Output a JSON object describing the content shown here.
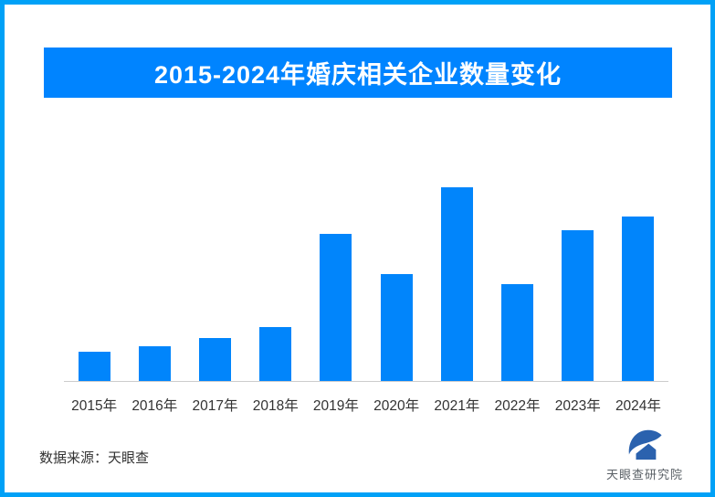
{
  "page": {
    "title_banner": "2015-2024年婚庆相关企业数量变化",
    "source_note": "数据来源：天眼查"
  },
  "footer_logo": {
    "icon": "tianyancha-logo-icon",
    "label": "天眼查研究院"
  },
  "colors": {
    "banner": "#0084ff",
    "border": "#00a1f7",
    "bar": "#0185fb",
    "axis_line": "#cccccc",
    "text": "#333333",
    "logo": "#2b62ae",
    "logo_text": "#5a6066"
  },
  "chart_data": {
    "type": "bar",
    "title": "2015-2024年婚庆相关企业数量变化",
    "categories": [
      "2015年",
      "2016年",
      "2017年",
      "2018年",
      "2019年",
      "2020年",
      "2021年",
      "2022年",
      "2023年",
      "2024年"
    ],
    "values": [
      15,
      18,
      22,
      28,
      76,
      55,
      100,
      50,
      78,
      85
    ],
    "value_units": "relative index (no y-axis or data labels shown; normalized to 2021 peak = 100)",
    "xlabel": "",
    "ylabel": "",
    "ylim": [
      0,
      100
    ],
    "legend": "none",
    "grid": false,
    "y_axis_labels_visible": false,
    "bar_color": "#0185fb",
    "axis_line_color": "#cccccc"
  }
}
